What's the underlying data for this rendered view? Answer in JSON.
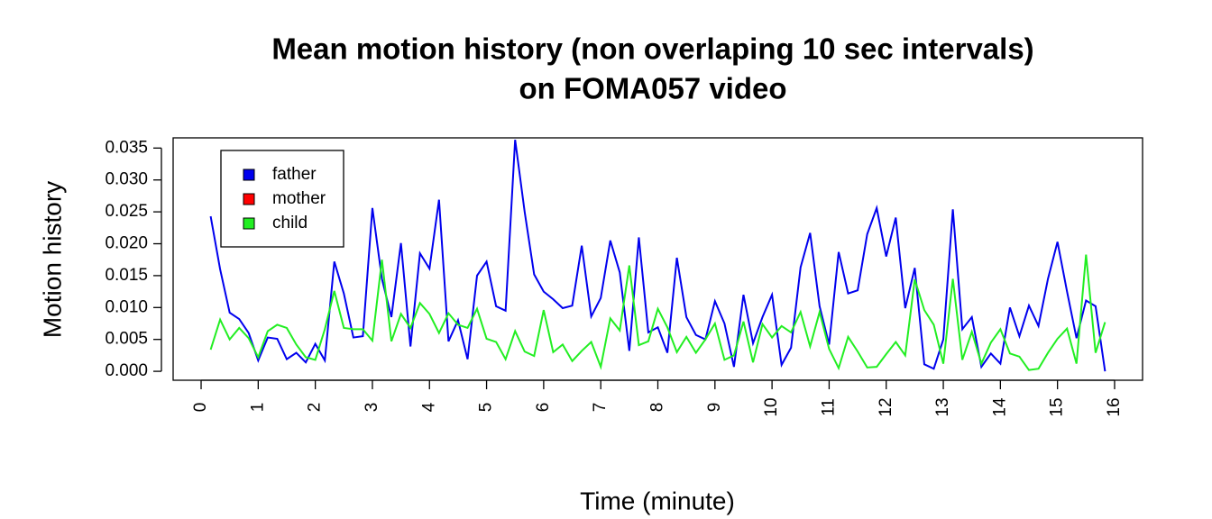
{
  "chart_data": {
    "type": "line",
    "title": [
      "Mean motion history (non overlaping 10 sec intervals)",
      "on FOMA057 video"
    ],
    "x_label": "Time (minute)",
    "y_label": "Motion history",
    "x": [
      0.167,
      0.333,
      0.5,
      0.667,
      0.833,
      1,
      1.167,
      1.333,
      1.5,
      1.667,
      1.833,
      2,
      2.167,
      2.333,
      2.5,
      2.667,
      2.833,
      3,
      3.167,
      3.333,
      3.5,
      3.667,
      3.833,
      4,
      4.167,
      4.333,
      4.5,
      4.667,
      4.833,
      5,
      5.167,
      5.333,
      5.5,
      5.667,
      5.833,
      6,
      6.167,
      6.333,
      6.5,
      6.667,
      6.833,
      7,
      7.167,
      7.333,
      7.5,
      7.667,
      7.833,
      8,
      8.167,
      8.333,
      8.5,
      8.667,
      8.833,
      9,
      9.167,
      9.333,
      9.5,
      9.667,
      9.833,
      10,
      10.167,
      10.333,
      10.5,
      10.667,
      10.833,
      11,
      11.167,
      11.333,
      11.5,
      11.667,
      11.833,
      12,
      12.167,
      12.333,
      12.5,
      12.667,
      12.833,
      13,
      13.167,
      13.333,
      13.5,
      13.667,
      13.833,
      14,
      14.167,
      14.333,
      14.5,
      14.667,
      14.833,
      15,
      15.167,
      15.333,
      15.5,
      15.667,
      15.833
    ],
    "series": [
      {
        "name": "father",
        "color": "#0000ee",
        "values": [
          0.0243,
          0.016,
          0.0092,
          0.0082,
          0.006,
          0.0017,
          0.0053,
          0.0051,
          0.0019,
          0.0029,
          0.0014,
          0.0043,
          0.0017,
          0.0172,
          0.0122,
          0.0053,
          0.0055,
          0.0256,
          0.0145,
          0.0085,
          0.0201,
          0.0039,
          0.0185,
          0.0161,
          0.0269,
          0.0047,
          0.008,
          0.0019,
          0.015,
          0.0172,
          0.0102,
          0.0095,
          0.0363,
          0.025,
          0.0152,
          0.0125,
          0.0113,
          0.0099,
          0.0103,
          0.0197,
          0.0086,
          0.0115,
          0.0205,
          0.0155,
          0.0032,
          0.021,
          0.0061,
          0.0069,
          0.0029,
          0.0178,
          0.0085,
          0.0057,
          0.005,
          0.011,
          0.0075,
          0.0007,
          0.012,
          0.0044,
          0.0085,
          0.012,
          0.001,
          0.0037,
          0.0163,
          0.0217,
          0.0102,
          0.0042,
          0.0187,
          0.0122,
          0.0127,
          0.0215,
          0.0256,
          0.018,
          0.0241,
          0.0099,
          0.0162,
          0.0011,
          0.0004,
          0.005,
          0.0254,
          0.0066,
          0.0085,
          0.0007,
          0.0028,
          0.0012,
          0.01,
          0.0055,
          0.0103,
          0.0071,
          0.0145,
          0.0203,
          0.0125,
          0.0052,
          0.0111,
          0.0102,
          0.0
        ]
      },
      {
        "name": "mother",
        "color": "#ff0000",
        "values": [
          null,
          null,
          null,
          null,
          null,
          null,
          null,
          null,
          null,
          null,
          null,
          null,
          null,
          null,
          null,
          null,
          null,
          null,
          null,
          null,
          null,
          null,
          null,
          null,
          null,
          null,
          null,
          null,
          null,
          null,
          null,
          null,
          null,
          null,
          null,
          null,
          null,
          null,
          null,
          null,
          null,
          null,
          null,
          null,
          null,
          null,
          null,
          null,
          null,
          null,
          null,
          null,
          null,
          null,
          null,
          null,
          null,
          null,
          null,
          null,
          null,
          null,
          null,
          null,
          null,
          null,
          null,
          null,
          null,
          null,
          null,
          null,
          null,
          null,
          null,
          null,
          null,
          null,
          null,
          null,
          null,
          null,
          null,
          null,
          null,
          null,
          null,
          null,
          null,
          null,
          null,
          null,
          null,
          null,
          null
        ]
      },
      {
        "name": "child",
        "color": "#22ee22",
        "values": [
          0.0034,
          0.0081,
          0.005,
          0.0068,
          0.0052,
          0.0022,
          0.0063,
          0.0073,
          0.0068,
          0.0042,
          0.0022,
          0.0018,
          0.0066,
          0.0126,
          0.0068,
          0.0066,
          0.0066,
          0.0048,
          0.0175,
          0.0047,
          0.009,
          0.0068,
          0.0107,
          0.009,
          0.006,
          0.0091,
          0.0073,
          0.0068,
          0.0098,
          0.0051,
          0.0046,
          0.0019,
          0.0063,
          0.0031,
          0.0024,
          0.0096,
          0.003,
          0.0042,
          0.0016,
          0.0032,
          0.0046,
          0.0007,
          0.0083,
          0.0064,
          0.0166,
          0.0041,
          0.0047,
          0.0098,
          0.0069,
          0.003,
          0.0054,
          0.0029,
          0.005,
          0.0075,
          0.0018,
          0.0025,
          0.0078,
          0.0014,
          0.0074,
          0.0053,
          0.0071,
          0.0061,
          0.0093,
          0.0039,
          0.0093,
          0.0035,
          0.0005,
          0.0054,
          0.0031,
          0.0006,
          0.0007,
          0.0027,
          0.0046,
          0.0025,
          0.0144,
          0.0096,
          0.0073,
          0.0012,
          0.0145,
          0.0018,
          0.0062,
          0.0012,
          0.0045,
          0.0066,
          0.0028,
          0.0023,
          0.0002,
          0.0004,
          0.0029,
          0.0051,
          0.0067,
          0.0012,
          0.0183,
          0.0029,
          0.0077
        ]
      }
    ],
    "xlim": [
      -0.49,
      16.49
    ],
    "ylim": [
      -0.0014,
      0.0366
    ],
    "xticks": [
      0,
      1,
      2,
      3,
      4,
      5,
      6,
      7,
      8,
      9,
      10,
      11,
      12,
      13,
      14,
      15,
      16
    ],
    "yticks": [
      {
        "value": 0,
        "label": "0.000"
      },
      0.005,
      {
        "value": 0.01,
        "label": "0.010"
      },
      0.015,
      {
        "value": 0.02,
        "label": "0.020"
      },
      0.025,
      {
        "value": 0.03,
        "label": "0.030"
      },
      0.035
    ],
    "legend": "topleft",
    "grid": false
  }
}
